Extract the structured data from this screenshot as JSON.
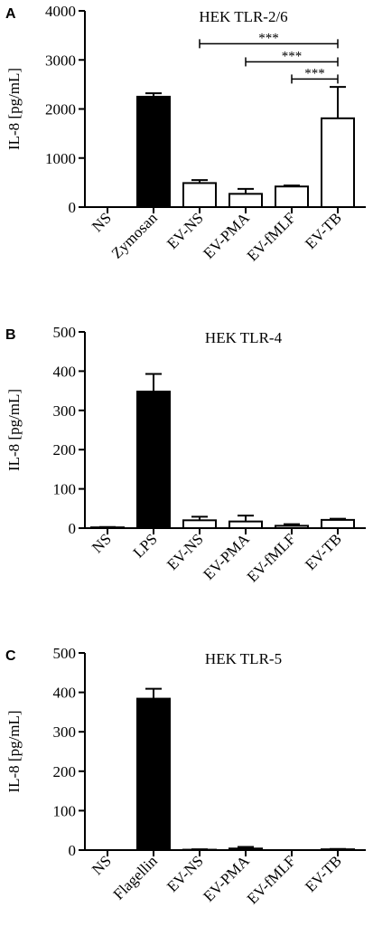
{
  "chart_data": [
    {
      "panel_label": "A",
      "type": "bar",
      "title": "HEK TLR-2/6",
      "xlabel": "",
      "ylabel": "IL-8 [pg/mL]",
      "ylim": [
        0,
        4000
      ],
      "yticks": [
        "0",
        "1000",
        "2000",
        "3000",
        "4000"
      ],
      "ytick_values": [
        0,
        1000,
        2000,
        3000,
        4000
      ],
      "categories": [
        "NS",
        "Zymosan",
        "EV-NS",
        "EV-PMA",
        "EV-fMLF",
        "EV-TB"
      ],
      "values": [
        0,
        2250,
        490,
        270,
        420,
        1810
      ],
      "errors": [
        0,
        70,
        60,
        100,
        20,
        640
      ],
      "fills": [
        "#ffffff",
        "#000000",
        "#ffffff",
        "#ffffff",
        "#ffffff",
        "#ffffff"
      ],
      "grid": false,
      "significance": [
        {
          "from": 2,
          "to": 5,
          "label": "***",
          "y": 3330
        },
        {
          "from": 3,
          "to": 5,
          "label": "***",
          "y": 2960
        },
        {
          "from": 4,
          "to": 5,
          "label": "***",
          "y": 2610
        }
      ]
    },
    {
      "panel_label": "B",
      "type": "bar",
      "title": "HEK TLR-4",
      "xlabel": "",
      "ylabel": "IL-8 [pg/mL]",
      "ylim": [
        0,
        500
      ],
      "yticks": [
        "0",
        "100",
        "200",
        "300",
        "400",
        "500"
      ],
      "ytick_values": [
        0,
        100,
        200,
        300,
        400,
        500
      ],
      "categories": [
        "NS",
        "LPS",
        "EV-NS",
        "EV-PMA",
        "EV-fMLF",
        "EV-TB"
      ],
      "values": [
        2,
        348,
        20,
        17,
        6,
        21
      ],
      "errors": [
        1,
        45,
        9,
        15,
        4,
        3
      ],
      "fills": [
        "#ffffff",
        "#000000",
        "#ffffff",
        "#ffffff",
        "#ffffff",
        "#ffffff"
      ],
      "grid": false,
      "significance": []
    },
    {
      "panel_label": "C",
      "type": "bar",
      "title": "HEK TLR-5",
      "xlabel": "",
      "ylabel": "IL-8 [pg/mL]",
      "ylim": [
        0,
        500
      ],
      "yticks": [
        "0",
        "100",
        "200",
        "300",
        "400",
        "500"
      ],
      "ytick_values": [
        0,
        100,
        200,
        300,
        400,
        500
      ],
      "categories": [
        "NS",
        "Flagellin",
        "EV-NS",
        "EV-PMA",
        "EV-fMLF",
        "EV-TB"
      ],
      "values": [
        0,
        384,
        1,
        4,
        0,
        2
      ],
      "errors": [
        0,
        25,
        1,
        4,
        0,
        1
      ],
      "fills": [
        "#ffffff",
        "#000000",
        "#ffffff",
        "#ffffff",
        "#ffffff",
        "#ffffff"
      ],
      "grid": false,
      "significance": []
    }
  ]
}
